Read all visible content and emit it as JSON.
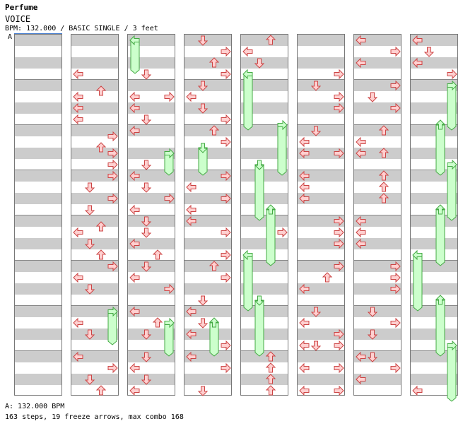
{
  "header": {
    "artist": "Perfume",
    "title": "VOICE",
    "meta": "BPM: 132.000 / BASIC SINGLE / 3 feet",
    "bpm_marker": "A"
  },
  "footer": {
    "bpm_legend": "A: 132.000 BPM",
    "stats": "163 steps, 19 freeze arrows, max combo 168"
  },
  "colors": {
    "arrow_fill": "#ffd0d0",
    "arrow_stroke": "#cc4444",
    "freeze_fill": "#ccffcc",
    "freeze_stroke": "#44aa44",
    "stripe": "#cccccc"
  },
  "chart": {
    "columns": 8,
    "beats_per_column": 16,
    "lanes": [
      "left",
      "down",
      "up",
      "right"
    ],
    "notes": [
      {
        "c": 1,
        "lane": "left",
        "beat": 3
      },
      {
        "c": 1,
        "lane": "up",
        "beat": 4.5
      },
      {
        "c": 1,
        "lane": "left",
        "beat": 5
      },
      {
        "c": 1,
        "lane": "left",
        "beat": 6
      },
      {
        "c": 1,
        "lane": "left",
        "beat": 7
      },
      {
        "c": 1,
        "lane": "right",
        "beat": 8.5
      },
      {
        "c": 1,
        "lane": "up",
        "beat": 9.5
      },
      {
        "c": 1,
        "lane": "right",
        "beat": 10
      },
      {
        "c": 1,
        "lane": "right",
        "beat": 11
      },
      {
        "c": 1,
        "lane": "right",
        "beat": 12
      },
      {
        "c": 1,
        "lane": "down",
        "beat": 13
      },
      {
        "c": 1,
        "lane": "right",
        "beat": 14
      },
      {
        "c": 1,
        "lane": "down",
        "beat": 15
      },
      {
        "c": 1,
        "lane": "up",
        "beat": 16.5
      },
      {
        "c": 1,
        "lane": "left",
        "beat": 17
      },
      {
        "c": 1,
        "lane": "down",
        "beat": 18
      },
      {
        "c": 1,
        "lane": "up",
        "beat": 19
      },
      {
        "c": 1,
        "lane": "right",
        "beat": 20
      },
      {
        "c": 1,
        "lane": "left",
        "beat": 21
      },
      {
        "c": 1,
        "lane": "down",
        "beat": 22
      },
      {
        "c": 1,
        "lane": "left",
        "beat": 25
      },
      {
        "c": 1,
        "lane": "down",
        "beat": 26
      },
      {
        "c": 1,
        "lane": "left",
        "beat": 28
      },
      {
        "c": 1,
        "lane": "right",
        "beat": 29
      },
      {
        "c": 1,
        "lane": "down",
        "beat": 30
      },
      {
        "c": 1,
        "lane": "up",
        "beat": 31
      },
      {
        "c": 2,
        "lane": "down",
        "beat": 3
      },
      {
        "c": 2,
        "lane": "left",
        "beat": 5
      },
      {
        "c": 2,
        "lane": "right",
        "beat": 5
      },
      {
        "c": 2,
        "lane": "left",
        "beat": 6
      },
      {
        "c": 2,
        "lane": "down",
        "beat": 7
      },
      {
        "c": 2,
        "lane": "left",
        "beat": 8
      },
      {
        "c": 2,
        "lane": "down",
        "beat": 11
      },
      {
        "c": 2,
        "lane": "left",
        "beat": 12
      },
      {
        "c": 2,
        "lane": "down",
        "beat": 13
      },
      {
        "c": 2,
        "lane": "right",
        "beat": 14
      },
      {
        "c": 2,
        "lane": "left",
        "beat": 15
      },
      {
        "c": 2,
        "lane": "down",
        "beat": 16
      },
      {
        "c": 2,
        "lane": "down",
        "beat": 17
      },
      {
        "c": 2,
        "lane": "left",
        "beat": 18
      },
      {
        "c": 2,
        "lane": "up",
        "beat": 19
      },
      {
        "c": 2,
        "lane": "down",
        "beat": 20
      },
      {
        "c": 2,
        "lane": "left",
        "beat": 21
      },
      {
        "c": 2,
        "lane": "right",
        "beat": 22
      },
      {
        "c": 2,
        "lane": "left",
        "beat": 24
      },
      {
        "c": 2,
        "lane": "up",
        "beat": 25
      },
      {
        "c": 2,
        "lane": "down",
        "beat": 26
      },
      {
        "c": 2,
        "lane": "down",
        "beat": 28
      },
      {
        "c": 2,
        "lane": "left",
        "beat": 29
      },
      {
        "c": 2,
        "lane": "down",
        "beat": 30
      },
      {
        "c": 2,
        "lane": "left",
        "beat": 31
      },
      {
        "c": 3,
        "lane": "down",
        "beat": 0
      },
      {
        "c": 3,
        "lane": "right",
        "beat": 1
      },
      {
        "c": 3,
        "lane": "up",
        "beat": 2
      },
      {
        "c": 3,
        "lane": "right",
        "beat": 3
      },
      {
        "c": 3,
        "lane": "down",
        "beat": 4
      },
      {
        "c": 3,
        "lane": "left",
        "beat": 5
      },
      {
        "c": 3,
        "lane": "down",
        "beat": 6
      },
      {
        "c": 3,
        "lane": "right",
        "beat": 7
      },
      {
        "c": 3,
        "lane": "up",
        "beat": 8
      },
      {
        "c": 3,
        "lane": "right",
        "beat": 9
      },
      {
        "c": 3,
        "lane": "right",
        "beat": 12
      },
      {
        "c": 3,
        "lane": "left",
        "beat": 13
      },
      {
        "c": 3,
        "lane": "right",
        "beat": 14
      },
      {
        "c": 3,
        "lane": "left",
        "beat": 15
      },
      {
        "c": 3,
        "lane": "left",
        "beat": 16
      },
      {
        "c": 3,
        "lane": "right",
        "beat": 17
      },
      {
        "c": 3,
        "lane": "right",
        "beat": 19
      },
      {
        "c": 3,
        "lane": "up",
        "beat": 20
      },
      {
        "c": 3,
        "lane": "right",
        "beat": 21
      },
      {
        "c": 3,
        "lane": "down",
        "beat": 23
      },
      {
        "c": 3,
        "lane": "left",
        "beat": 24
      },
      {
        "c": 3,
        "lane": "down",
        "beat": 25
      },
      {
        "c": 3,
        "lane": "left",
        "beat": 26
      },
      {
        "c": 3,
        "lane": "right",
        "beat": 27
      },
      {
        "c": 3,
        "lane": "left",
        "beat": 28
      },
      {
        "c": 3,
        "lane": "right",
        "beat": 29
      },
      {
        "c": 3,
        "lane": "down",
        "beat": 31
      },
      {
        "c": 4,
        "lane": "up",
        "beat": 0
      },
      {
        "c": 4,
        "lane": "left",
        "beat": 1
      },
      {
        "c": 4,
        "lane": "down",
        "beat": 2
      },
      {
        "c": 4,
        "lane": "right",
        "beat": 17
      },
      {
        "c": 4,
        "lane": "up",
        "beat": 28
      },
      {
        "c": 4,
        "lane": "up",
        "beat": 29
      },
      {
        "c": 4,
        "lane": "up",
        "beat": 30
      },
      {
        "c": 4,
        "lane": "up",
        "beat": 31
      },
      {
        "c": 5,
        "lane": "right",
        "beat": 3
      },
      {
        "c": 5,
        "lane": "down",
        "beat": 4
      },
      {
        "c": 5,
        "lane": "right",
        "beat": 5
      },
      {
        "c": 5,
        "lane": "right",
        "beat": 6
      },
      {
        "c": 5,
        "lane": "down",
        "beat": 8
      },
      {
        "c": 5,
        "lane": "left",
        "beat": 9
      },
      {
        "c": 5,
        "lane": "left",
        "beat": 10
      },
      {
        "c": 5,
        "lane": "right",
        "beat": 10
      },
      {
        "c": 5,
        "lane": "left",
        "beat": 12
      },
      {
        "c": 5,
        "lane": "left",
        "beat": 13
      },
      {
        "c": 5,
        "lane": "left",
        "beat": 14
      },
      {
        "c": 5,
        "lane": "right",
        "beat": 16
      },
      {
        "c": 5,
        "lane": "right",
        "beat": 17
      },
      {
        "c": 5,
        "lane": "right",
        "beat": 18
      },
      {
        "c": 5,
        "lane": "right",
        "beat": 20
      },
      {
        "c": 5,
        "lane": "up",
        "beat": 21
      },
      {
        "c": 5,
        "lane": "left",
        "beat": 22
      },
      {
        "c": 5,
        "lane": "down",
        "beat": 24
      },
      {
        "c": 5,
        "lane": "left",
        "beat": 25
      },
      {
        "c": 5,
        "lane": "right",
        "beat": 26
      },
      {
        "c": 5,
        "lane": "left",
        "beat": 27
      },
      {
        "c": 5,
        "lane": "down",
        "beat": 27
      },
      {
        "c": 5,
        "lane": "right",
        "beat": 27
      },
      {
        "c": 5,
        "lane": "left",
        "beat": 29
      },
      {
        "c": 5,
        "lane": "right",
        "beat": 29
      },
      {
        "c": 5,
        "lane": "left",
        "beat": 31
      },
      {
        "c": 5,
        "lane": "right",
        "beat": 31
      },
      {
        "c": 6,
        "lane": "left",
        "beat": 0
      },
      {
        "c": 6,
        "lane": "right",
        "beat": 1
      },
      {
        "c": 6,
        "lane": "left",
        "beat": 2
      },
      {
        "c": 6,
        "lane": "right",
        "beat": 4
      },
      {
        "c": 6,
        "lane": "down",
        "beat": 5
      },
      {
        "c": 6,
        "lane": "right",
        "beat": 6
      },
      {
        "c": 6,
        "lane": "up",
        "beat": 8
      },
      {
        "c": 6,
        "lane": "left",
        "beat": 9
      },
      {
        "c": 6,
        "lane": "left",
        "beat": 10
      },
      {
        "c": 6,
        "lane": "up",
        "beat": 10
      },
      {
        "c": 6,
        "lane": "up",
        "beat": 12
      },
      {
        "c": 6,
        "lane": "up",
        "beat": 13
      },
      {
        "c": 6,
        "lane": "up",
        "beat": 14
      },
      {
        "c": 6,
        "lane": "left",
        "beat": 16
      },
      {
        "c": 6,
        "lane": "left",
        "beat": 17
      },
      {
        "c": 6,
        "lane": "left",
        "beat": 18
      },
      {
        "c": 6,
        "lane": "right",
        "beat": 20
      },
      {
        "c": 6,
        "lane": "right",
        "beat": 21
      },
      {
        "c": 6,
        "lane": "right",
        "beat": 22
      },
      {
        "c": 6,
        "lane": "down",
        "beat": 24
      },
      {
        "c": 6,
        "lane": "right",
        "beat": 25
      },
      {
        "c": 6,
        "lane": "down",
        "beat": 26
      },
      {
        "c": 6,
        "lane": "down",
        "beat": 28
      },
      {
        "c": 6,
        "lane": "left",
        "beat": 28
      },
      {
        "c": 6,
        "lane": "right",
        "beat": 29
      },
      {
        "c": 6,
        "lane": "left",
        "beat": 30
      },
      {
        "c": 7,
        "lane": "left",
        "beat": 0
      },
      {
        "c": 7,
        "lane": "down",
        "beat": 1
      },
      {
        "c": 7,
        "lane": "left",
        "beat": 2
      },
      {
        "c": 7,
        "lane": "right",
        "beat": 3
      },
      {
        "c": 7,
        "lane": "left",
        "beat": 31
      }
    ],
    "freezes": [
      {
        "c": 2,
        "lane": "left",
        "start": 0,
        "end": 2.5
      },
      {
        "c": 2,
        "lane": "right",
        "start": 10,
        "end": 11.5
      },
      {
        "c": 3,
        "lane": "down",
        "start": 9.5,
        "end": 11.5
      },
      {
        "c": 3,
        "lane": "up",
        "start": 25,
        "end": 27.5
      },
      {
        "c": 4,
        "lane": "left",
        "start": 3,
        "end": 7.5
      },
      {
        "c": 4,
        "lane": "right",
        "start": 7.5,
        "end": 11.5
      },
      {
        "c": 4,
        "lane": "down",
        "start": 11,
        "end": 15.5
      },
      {
        "c": 4,
        "lane": "up",
        "start": 15,
        "end": 19.5
      },
      {
        "c": 4,
        "lane": "left",
        "start": 19,
        "end": 23.5
      },
      {
        "c": 4,
        "lane": "down",
        "start": 23,
        "end": 27.5
      },
      {
        "c": 7,
        "lane": "right",
        "start": 4,
        "end": 7.5
      },
      {
        "c": 7,
        "lane": "up",
        "start": 7.5,
        "end": 11.5
      },
      {
        "c": 7,
        "lane": "right",
        "start": 11,
        "end": 15.5
      },
      {
        "c": 7,
        "lane": "up",
        "start": 15,
        "end": 19.5
      },
      {
        "c": 7,
        "lane": "left",
        "start": 19,
        "end": 23.5
      },
      {
        "c": 7,
        "lane": "up",
        "start": 23,
        "end": 27.5
      },
      {
        "c": 7,
        "lane": "right",
        "start": 27,
        "end": 31.5
      },
      {
        "c": 1,
        "lane": "right",
        "start": 24,
        "end": 26.5
      },
      {
        "c": 2,
        "lane": "right",
        "start": 25,
        "end": 27.5
      }
    ]
  }
}
